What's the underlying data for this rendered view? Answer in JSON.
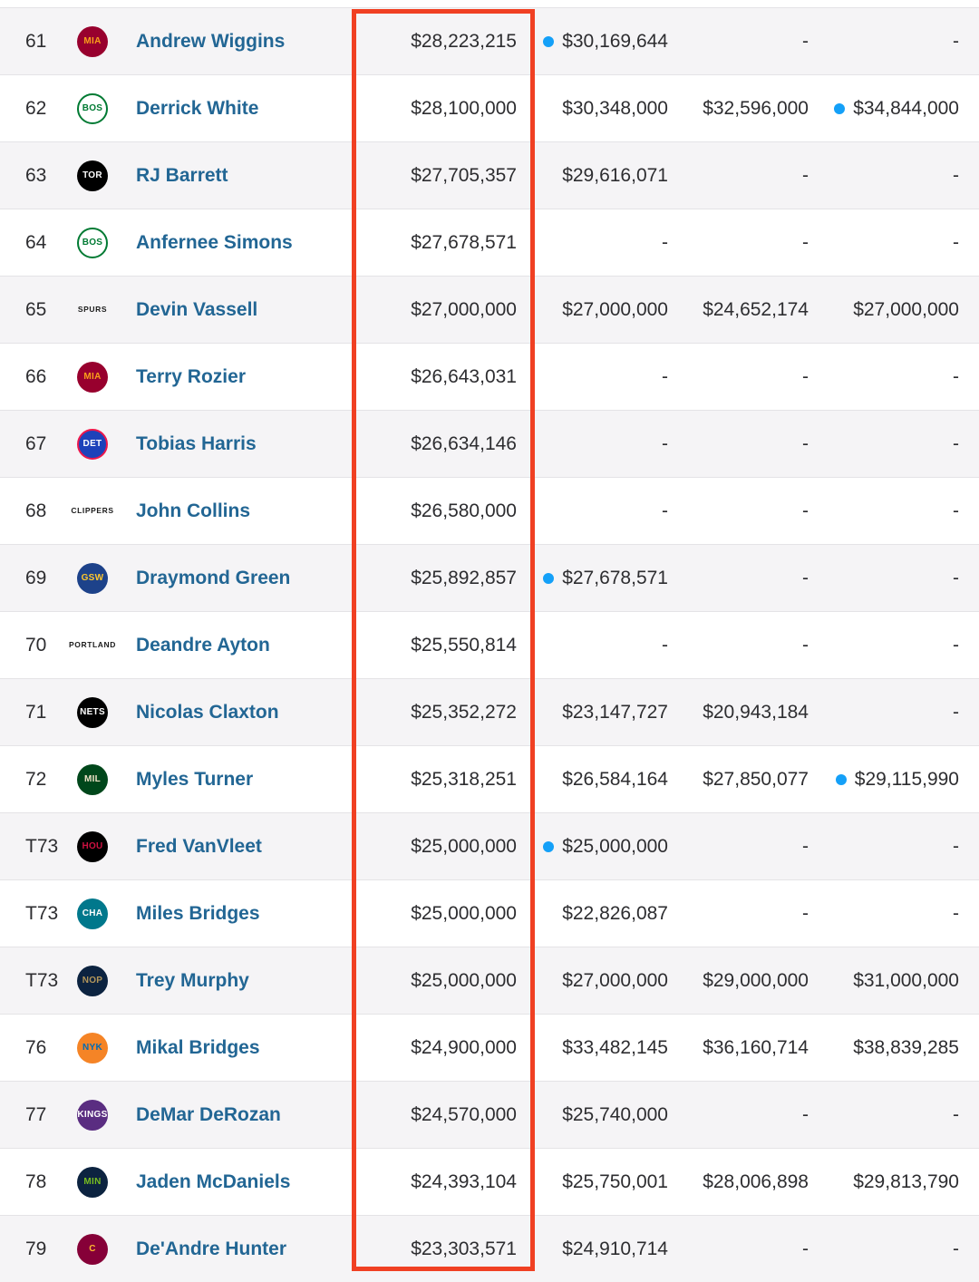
{
  "page": {
    "description": "NBA player salary rankings table, rows 61-79, first salary-year column outlined in red"
  },
  "colors": {
    "player_link": "#226694",
    "option_dot": "#14a0f8",
    "highlight_box": "#f04023",
    "salary_text": "#2d2d30"
  },
  "table": {
    "rows": [
      {
        "rank": "61",
        "player": "Andrew Wiggins",
        "team_name": "Miami Heat",
        "team_slug": "heat",
        "team_abbr": "MIA",
        "logo_text": "MIA",
        "logo_style": "circle",
        "logo_bg": "#98002e",
        "logo_fg": "#f9a01b",
        "salaries": [
          {
            "amount": "$28,223,215"
          },
          {
            "amount": "$30,169,644",
            "option_dot": true
          },
          {
            "amount": "-"
          },
          {
            "amount": "-"
          }
        ]
      },
      {
        "rank": "62",
        "player": "Derrick White",
        "team_name": "Boston Celtics",
        "team_slug": "celtics",
        "team_abbr": "BOS",
        "logo_text": "BOS",
        "logo_style": "circle",
        "logo_bg": "#ffffff",
        "logo_fg": "#007a33",
        "logo_border": "#007a33",
        "salaries": [
          {
            "amount": "$28,100,000"
          },
          {
            "amount": "$30,348,000"
          },
          {
            "amount": "$32,596,000"
          },
          {
            "amount": "$34,844,000",
            "option_dot": true
          }
        ]
      },
      {
        "rank": "63",
        "player": "RJ Barrett",
        "team_name": "Toronto Raptors",
        "team_slug": "raptors",
        "team_abbr": "TOR",
        "logo_text": "TOR",
        "logo_style": "circle",
        "logo_bg": "#000000",
        "logo_fg": "#ffffff",
        "salaries": [
          {
            "amount": "$27,705,357"
          },
          {
            "amount": "$29,616,071"
          },
          {
            "amount": "-"
          },
          {
            "amount": "-"
          }
        ]
      },
      {
        "rank": "64",
        "player": "Anfernee Simons",
        "team_name": "Boston Celtics",
        "team_slug": "celtics",
        "team_abbr": "BOS",
        "logo_text": "BOS",
        "logo_style": "circle",
        "logo_bg": "#ffffff",
        "logo_fg": "#007a33",
        "logo_border": "#007a33",
        "salaries": [
          {
            "amount": "$27,678,571"
          },
          {
            "amount": "-"
          },
          {
            "amount": "-"
          },
          {
            "amount": "-"
          }
        ]
      },
      {
        "rank": "65",
        "player": "Devin Vassell",
        "team_name": "San Antonio Spurs",
        "team_slug": "spurs",
        "team_abbr": "SAS",
        "logo_text": "SPURS",
        "logo_style": "wordmark",
        "logo_bg": "",
        "logo_fg": "#1b1b1b",
        "salaries": [
          {
            "amount": "$27,000,000"
          },
          {
            "amount": "$27,000,000"
          },
          {
            "amount": "$24,652,174"
          },
          {
            "amount": "$27,000,000"
          }
        ]
      },
      {
        "rank": "66",
        "player": "Terry Rozier",
        "team_name": "Miami Heat",
        "team_slug": "heat",
        "team_abbr": "MIA",
        "logo_text": "MIA",
        "logo_style": "circle",
        "logo_bg": "#98002e",
        "logo_fg": "#f9a01b",
        "salaries": [
          {
            "amount": "$26,643,031"
          },
          {
            "amount": "-"
          },
          {
            "amount": "-"
          },
          {
            "amount": "-"
          }
        ]
      },
      {
        "rank": "67",
        "player": "Tobias Harris",
        "team_name": "Detroit Pistons",
        "team_slug": "pistons",
        "team_abbr": "DET",
        "logo_text": "DET",
        "logo_style": "circle",
        "logo_bg": "#1d42ba",
        "logo_fg": "#ffffff",
        "logo_border": "#ed174c",
        "salaries": [
          {
            "amount": "$26,634,146"
          },
          {
            "amount": "-"
          },
          {
            "amount": "-"
          },
          {
            "amount": "-"
          }
        ]
      },
      {
        "rank": "68",
        "player": "John Collins",
        "team_name": "LA Clippers",
        "team_slug": "clippers",
        "team_abbr": "LAC",
        "logo_text": "CLIPPERS",
        "logo_style": "wordmark",
        "logo_bg": "",
        "logo_fg": "#1b1b1b",
        "salaries": [
          {
            "amount": "$26,580,000"
          },
          {
            "amount": "-"
          },
          {
            "amount": "-"
          },
          {
            "amount": "-"
          }
        ]
      },
      {
        "rank": "69",
        "player": "Draymond Green",
        "team_name": "Golden State Warriors",
        "team_slug": "warriors",
        "team_abbr": "GSW",
        "logo_text": "GSW",
        "logo_style": "circle",
        "logo_bg": "#1d428a",
        "logo_fg": "#ffc72c",
        "salaries": [
          {
            "amount": "$25,892,857"
          },
          {
            "amount": "$27,678,571",
            "option_dot": true
          },
          {
            "amount": "-"
          },
          {
            "amount": "-"
          }
        ]
      },
      {
        "rank": "70",
        "player": "Deandre Ayton",
        "team_name": "Portland Trail Blazers",
        "team_slug": "trail-blazers",
        "team_abbr": "POR",
        "logo_text": "PORTLAND",
        "logo_style": "wordmark",
        "logo_bg": "",
        "logo_fg": "#1b1b1b",
        "salaries": [
          {
            "amount": "$25,550,814"
          },
          {
            "amount": "-"
          },
          {
            "amount": "-"
          },
          {
            "amount": "-"
          }
        ]
      },
      {
        "rank": "71",
        "player": "Nicolas Claxton",
        "team_name": "Brooklyn Nets",
        "team_slug": "nets",
        "team_abbr": "BKN",
        "logo_text": "NETS",
        "logo_style": "circle",
        "logo_bg": "#000000",
        "logo_fg": "#ffffff",
        "salaries": [
          {
            "amount": "$25,352,272"
          },
          {
            "amount": "$23,147,727"
          },
          {
            "amount": "$20,943,184"
          },
          {
            "amount": "-"
          }
        ]
      },
      {
        "rank": "72",
        "player": "Myles Turner",
        "team_name": "Milwaukee Bucks",
        "team_slug": "bucks",
        "team_abbr": "MIL",
        "logo_text": "MIL",
        "logo_style": "circle",
        "logo_bg": "#00471b",
        "logo_fg": "#eee1c6",
        "salaries": [
          {
            "amount": "$25,318,251"
          },
          {
            "amount": "$26,584,164"
          },
          {
            "amount": "$27,850,077"
          },
          {
            "amount": "$29,115,990",
            "option_dot": true
          }
        ]
      },
      {
        "rank": "T73",
        "player": "Fred VanVleet",
        "team_name": "Houston Rockets",
        "team_slug": "rockets",
        "team_abbr": "HOU",
        "logo_text": "HOU",
        "logo_style": "circle",
        "logo_bg": "#000000",
        "logo_fg": "#ce1141",
        "salaries": [
          {
            "amount": "$25,000,000"
          },
          {
            "amount": "$25,000,000",
            "option_dot": true
          },
          {
            "amount": "-"
          },
          {
            "amount": "-"
          }
        ]
      },
      {
        "rank": "T73",
        "player": "Miles Bridges",
        "team_name": "Charlotte Hornets",
        "team_slug": "hornets",
        "team_abbr": "CHA",
        "logo_text": "CHA",
        "logo_style": "circle",
        "logo_bg": "#00788c",
        "logo_fg": "#ffffff",
        "salaries": [
          {
            "amount": "$25,000,000"
          },
          {
            "amount": "$22,826,087"
          },
          {
            "amount": "-"
          },
          {
            "amount": "-"
          }
        ]
      },
      {
        "rank": "T73",
        "player": "Trey Murphy",
        "team_name": "New Orleans Pelicans",
        "team_slug": "pelicans",
        "team_abbr": "NOP",
        "logo_text": "NOP",
        "logo_style": "circle",
        "logo_bg": "#0c2340",
        "logo_fg": "#b4975a",
        "salaries": [
          {
            "amount": "$25,000,000"
          },
          {
            "amount": "$27,000,000"
          },
          {
            "amount": "$29,000,000"
          },
          {
            "amount": "$31,000,000"
          }
        ]
      },
      {
        "rank": "76",
        "player": "Mikal Bridges",
        "team_name": "New York Knicks",
        "team_slug": "knicks",
        "team_abbr": "NYK",
        "logo_text": "NYK",
        "logo_style": "circle",
        "logo_bg": "#f58426",
        "logo_fg": "#006bb6",
        "salaries": [
          {
            "amount": "$24,900,000"
          },
          {
            "amount": "$33,482,145"
          },
          {
            "amount": "$36,160,714"
          },
          {
            "amount": "$38,839,285"
          }
        ]
      },
      {
        "rank": "77",
        "player": "DeMar DeRozan",
        "team_name": "Sacramento Kings",
        "team_slug": "kings",
        "team_abbr": "SAC",
        "logo_text": "KINGS",
        "logo_style": "circle",
        "logo_bg": "#5a2d81",
        "logo_fg": "#ffffff",
        "salaries": [
          {
            "amount": "$24,570,000"
          },
          {
            "amount": "$25,740,000"
          },
          {
            "amount": "-"
          },
          {
            "amount": "-"
          }
        ]
      },
      {
        "rank": "78",
        "player": "Jaden McDaniels",
        "team_name": "Minnesota Timberwolves",
        "team_slug": "timberwolves",
        "team_abbr": "MIN",
        "logo_text": "MIN",
        "logo_style": "circle",
        "logo_bg": "#0c2340",
        "logo_fg": "#78be20",
        "salaries": [
          {
            "amount": "$24,393,104"
          },
          {
            "amount": "$25,750,001"
          },
          {
            "amount": "$28,006,898"
          },
          {
            "amount": "$29,813,790"
          }
        ]
      },
      {
        "rank": "79",
        "player": "De'Andre Hunter",
        "team_name": "Cleveland Cavaliers",
        "team_slug": "cavaliers",
        "team_abbr": "CLE",
        "logo_text": "C",
        "logo_style": "circle",
        "logo_bg": "#860038",
        "logo_fg": "#fdbb30",
        "salaries": [
          {
            "amount": "$23,303,571"
          },
          {
            "amount": "$24,910,714"
          },
          {
            "amount": "-"
          },
          {
            "amount": "-"
          }
        ]
      }
    ]
  }
}
